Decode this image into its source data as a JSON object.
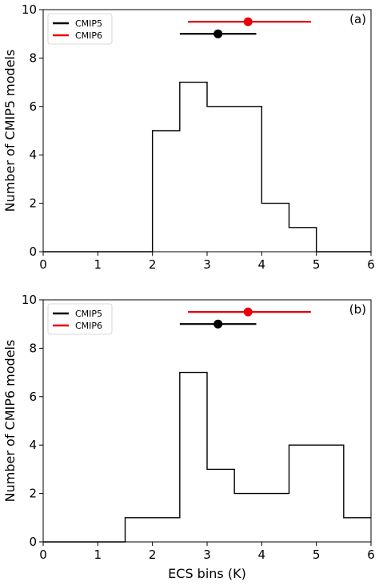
{
  "chart_data": [
    {
      "type": "histogram",
      "panel_label": "(a)",
      "xlabel": "",
      "ylabel": "Number of CMIP5 models",
      "xlim": [
        0,
        6
      ],
      "ylim": [
        0,
        10
      ],
      "xticks": [
        "0",
        "1",
        "2",
        "3",
        "4",
        "5",
        "6"
      ],
      "yticks": [
        "0",
        "2",
        "4",
        "6",
        "8",
        "10"
      ],
      "bin_edges": [
        0,
        0.5,
        1,
        1.5,
        2,
        2.5,
        3,
        3.5,
        4,
        4.5,
        5,
        5.5,
        6
      ],
      "counts": [
        0,
        0,
        0,
        0,
        5,
        7,
        6,
        6,
        2,
        1,
        0,
        0
      ],
      "legend": {
        "position": "top-left",
        "entries": [
          {
            "label": "CMIP5",
            "color": "#000000"
          },
          {
            "label": "CMIP6",
            "color": "#e8000b"
          }
        ]
      },
      "error_bars": [
        {
          "series": "CMIP6",
          "color": "#e8000b",
          "y": 9.5,
          "x": 3.75,
          "xmin": 2.65,
          "xmax": 4.9
        },
        {
          "series": "CMIP5",
          "color": "#000000",
          "y": 9.0,
          "x": 3.2,
          "xmin": 2.5,
          "xmax": 3.9
        }
      ]
    },
    {
      "type": "histogram",
      "panel_label": "(b)",
      "xlabel": "ECS bins (K)",
      "ylabel": "Number of CMIP6 models",
      "xlim": [
        0,
        6
      ],
      "ylim": [
        0,
        10
      ],
      "xticks": [
        "0",
        "1",
        "2",
        "3",
        "4",
        "5",
        "6"
      ],
      "yticks": [
        "0",
        "2",
        "4",
        "6",
        "8",
        "10"
      ],
      "bin_edges": [
        0,
        0.5,
        1,
        1.5,
        2,
        2.5,
        3,
        3.5,
        4,
        4.5,
        5,
        5.5,
        6
      ],
      "counts": [
        0,
        0,
        0,
        1,
        1,
        7,
        3,
        2,
        2,
        4,
        4,
        1
      ],
      "legend": {
        "position": "top-left",
        "entries": [
          {
            "label": "CMIP5",
            "color": "#000000"
          },
          {
            "label": "CMIP6",
            "color": "#e8000b"
          }
        ]
      },
      "error_bars": [
        {
          "series": "CMIP6",
          "color": "#e8000b",
          "y": 9.5,
          "x": 3.75,
          "xmin": 2.65,
          "xmax": 4.9
        },
        {
          "series": "CMIP5",
          "color": "#000000",
          "y": 9.0,
          "x": 3.2,
          "xmin": 2.5,
          "xmax": 3.9
        }
      ]
    }
  ]
}
